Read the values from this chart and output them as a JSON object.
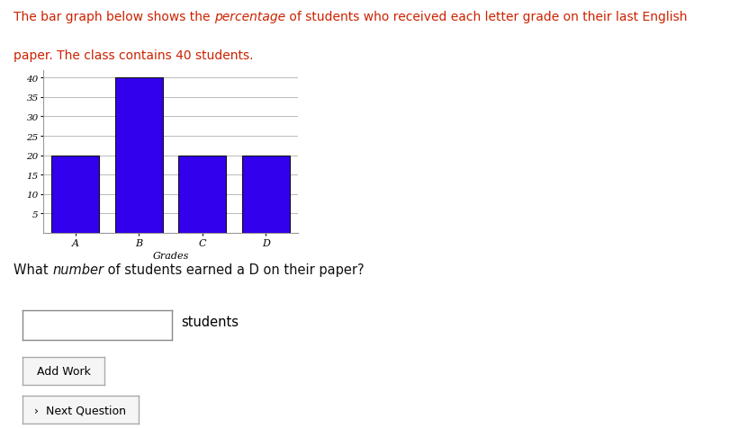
{
  "categories": [
    "A",
    "B",
    "C",
    "D"
  ],
  "values": [
    20,
    40,
    20,
    20
  ],
  "bar_color": "#3300EE",
  "bar_edge_color": "#111111",
  "bar_edge_width": 0.8,
  "xlabel": "Grades",
  "yticks": [
    5,
    10,
    15,
    20,
    25,
    30,
    35,
    40
  ],
  "ylim_max": 42,
  "tick_fontsize": 7.5,
  "xlabel_fontsize": 8,
  "grid_color": "#bbbbbb",
  "bg_color": "#ffffff",
  "bar_width": 0.75,
  "desc_color": "#cc2200",
  "desc_line1_parts": [
    [
      "The bar graph below shows the ",
      false
    ],
    [
      "percentage",
      true
    ],
    [
      " of students who received each letter grade on their last English",
      false
    ]
  ],
  "desc_line2": "paper. The class contains 40 students.",
  "desc_fontsize": 10,
  "q_parts": [
    [
      "What ",
      false
    ],
    [
      "number",
      true
    ],
    [
      " of students earned a D on their paper?",
      false
    ]
  ],
  "q_color": "#111111",
  "q_fontsize": 10.5,
  "students_label": "students",
  "btn1_label": "Add Work",
  "btn2_label": "›  Next Question",
  "magnifier": "🔍"
}
